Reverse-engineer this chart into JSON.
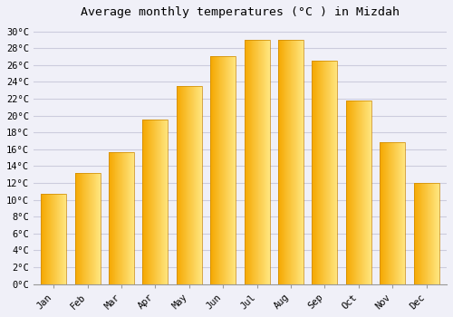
{
  "title": "Average monthly temperatures (°C ) in Mizdah",
  "months": [
    "Jan",
    "Feb",
    "Mar",
    "Apr",
    "May",
    "Jun",
    "Jul",
    "Aug",
    "Sep",
    "Oct",
    "Nov",
    "Dec"
  ],
  "values": [
    10.7,
    13.2,
    15.7,
    19.5,
    23.5,
    27.0,
    29.0,
    29.0,
    26.5,
    21.8,
    16.8,
    12.0
  ],
  "bar_color_left": "#F5A800",
  "bar_color_right": "#FFE680",
  "background_color": "#F0F0F8",
  "plot_bg_color": "#F0F0F8",
  "grid_color": "#CCCCDD",
  "title_fontsize": 9.5,
  "tick_fontsize": 7.5,
  "ylim": [
    0,
    31
  ],
  "ytick_step": 2,
  "bar_width": 0.75
}
